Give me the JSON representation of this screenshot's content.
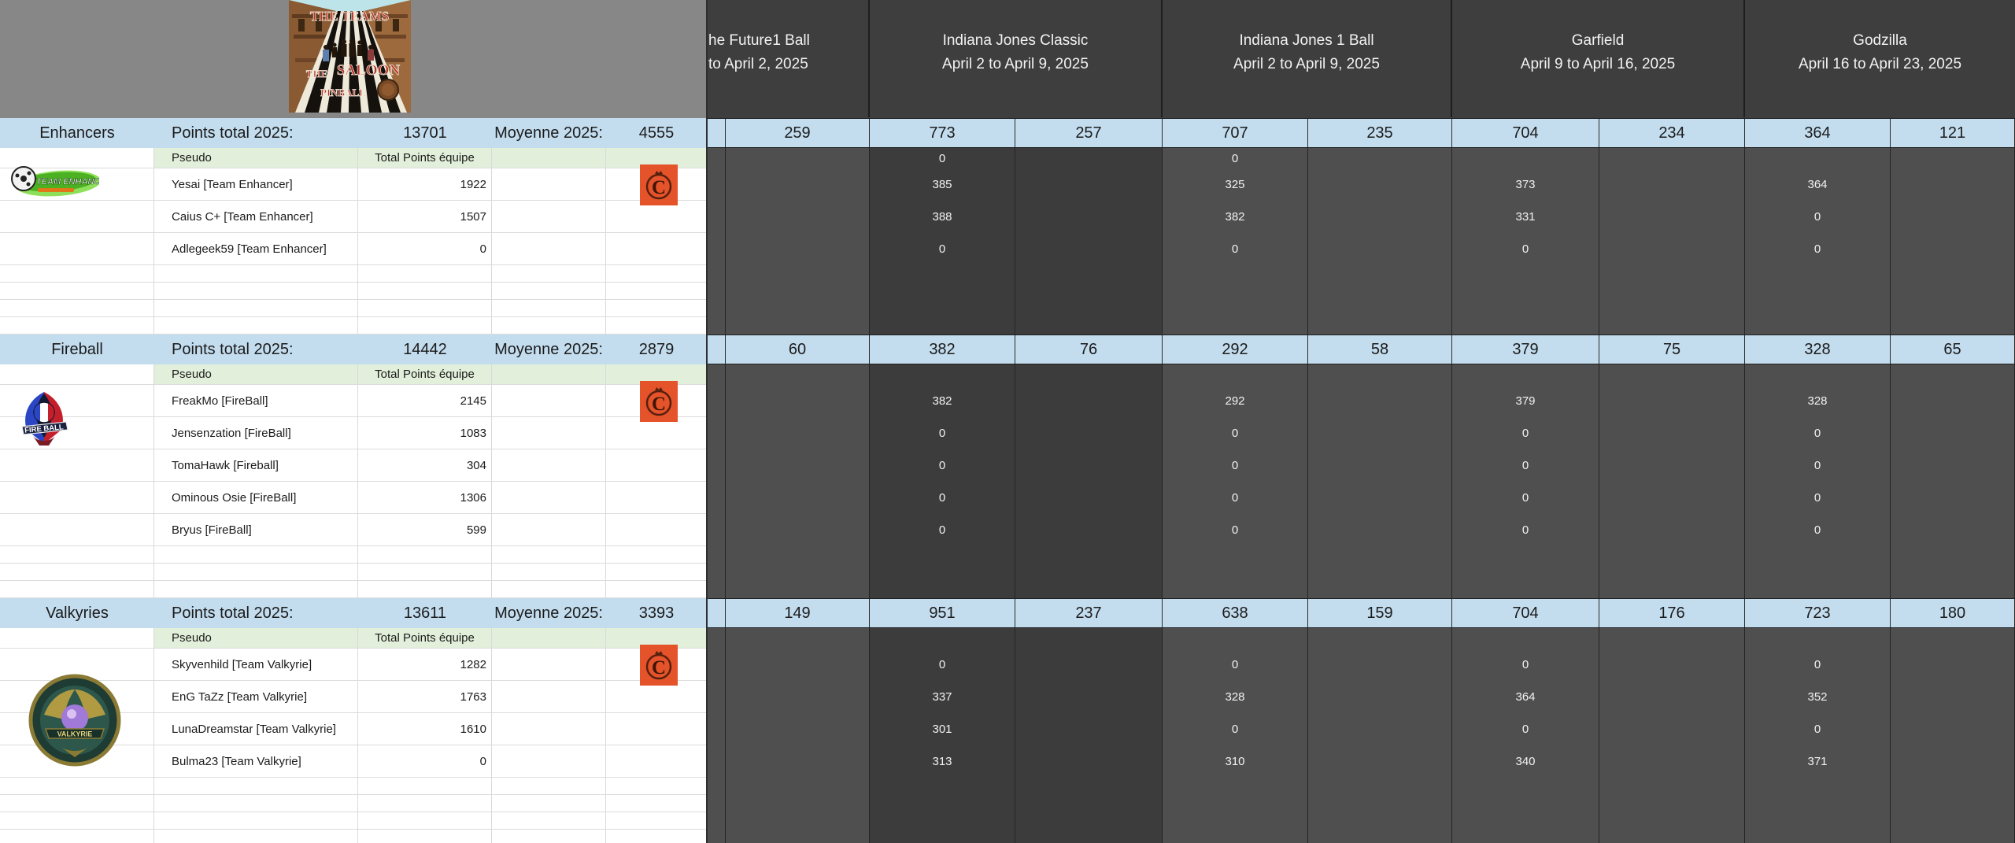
{
  "poster": {
    "icon": "saloon-poster-image",
    "title_top": "THE TEAMS",
    "word_the": "THE",
    "word_saloon": "SALOON",
    "word_pinball": "PINBALL"
  },
  "labels": {
    "points_total": "Points total 2025:",
    "moyenne": "Moyenne 2025:",
    "pseudo": "Pseudo",
    "total_points_equipe": "Total Points équipe"
  },
  "tournaments": [
    {
      "name": "he Future1 Ball",
      "dates": "to April 2, 2025",
      "clipped": true
    },
    {
      "name": "Indiana Jones Classic",
      "dates": "April 2 to April 9, 2025"
    },
    {
      "name": "Indiana Jones 1 Ball",
      "dates": "April 2 to April 9, 2025"
    },
    {
      "name": "Garfield",
      "dates": "April 9 to April 16, 2025"
    },
    {
      "name": "Godzilla",
      "dates": "April 16 to April 23, 2025"
    }
  ],
  "teams": [
    {
      "name": "Enhancers",
      "points_total": "13701",
      "moyenne": "4555",
      "logo_icon": "team-enhancer-logo",
      "header_values": [
        "259",
        "773",
        "257",
        "707",
        "235",
        "704",
        "234",
        "364",
        "121"
      ],
      "pseudo_row_values": [
        "",
        "0",
        "",
        "0",
        "",
        "",
        "",
        "",
        ""
      ],
      "players": [
        {
          "pseudo": "Yesai [Team Enhancer]",
          "total": "1922",
          "badge": "c-badge-icon",
          "values": [
            "",
            "385",
            "",
            "325",
            "",
            "373",
            "",
            "364",
            ""
          ]
        },
        {
          "pseudo": "Caius C+ [Team Enhancer]",
          "total": "1507",
          "badge": null,
          "values": [
            "",
            "388",
            "",
            "382",
            "",
            "331",
            "",
            "0",
            ""
          ]
        },
        {
          "pseudo": "Adlegeek59 [Team Enhancer]",
          "total": "0",
          "badge": null,
          "values": [
            "",
            "0",
            "",
            "0",
            "",
            "0",
            "",
            "0",
            ""
          ]
        }
      ],
      "empty_rows_after": 4
    },
    {
      "name": "Fireball",
      "points_total": "14442",
      "moyenne": "2879",
      "logo_icon": "fireball-logo",
      "logo_text": "FIRE BALL",
      "header_values": [
        "60",
        "382",
        "76",
        "292",
        "58",
        "379",
        "75",
        "328",
        "65"
      ],
      "pseudo_row_values": [
        "",
        "",
        "",
        "",
        "",
        "",
        "",
        "",
        ""
      ],
      "players": [
        {
          "pseudo": "FreakMo [FireBall]",
          "total": "2145",
          "badge": "c-badge-icon",
          "values": [
            "",
            "382",
            "",
            "292",
            "",
            "379",
            "",
            "328",
            ""
          ]
        },
        {
          "pseudo": "Jensenzation [FireBall]",
          "total": "1083",
          "badge": null,
          "values": [
            "",
            "0",
            "",
            "0",
            "",
            "0",
            "",
            "0",
            ""
          ]
        },
        {
          "pseudo": "TomaHawk [Fireball]",
          "total": "304",
          "badge": null,
          "values": [
            "",
            "0",
            "",
            "0",
            "",
            "0",
            "",
            "0",
            ""
          ]
        },
        {
          "pseudo": "Ominous Osie [FireBall]",
          "total": "1306",
          "badge": null,
          "values": [
            "",
            "0",
            "",
            "0",
            "",
            "0",
            "",
            "0",
            ""
          ]
        },
        {
          "pseudo": "Bryus [FireBall]",
          "total": "599",
          "badge": null,
          "values": [
            "",
            "0",
            "",
            "0",
            "",
            "0",
            "",
            "0",
            ""
          ]
        }
      ],
      "empty_rows_after": 3
    },
    {
      "name": "Valkyries",
      "points_total": "13611",
      "moyenne": "3393",
      "logo_icon": "valkyrie-logo",
      "logo_text": "VALKYRIE",
      "header_values": [
        "149",
        "951",
        "237",
        "638",
        "159",
        "704",
        "176",
        "723",
        "180"
      ],
      "pseudo_row_values": [
        "",
        "",
        "",
        "",
        "",
        "",
        "",
        "",
        ""
      ],
      "players": [
        {
          "pseudo": "Skyvenhild [Team Valkyrie]",
          "total": "1282",
          "badge": "c-badge-icon",
          "values": [
            "",
            "0",
            "",
            "0",
            "",
            "0",
            "",
            "0",
            ""
          ]
        },
        {
          "pseudo": "EnG TaZz [Team Valkyrie]",
          "total": "1763",
          "badge": null,
          "values": [
            "",
            "337",
            "",
            "328",
            "",
            "364",
            "",
            "352",
            ""
          ]
        },
        {
          "pseudo": "LunaDreamstar [Team Valkyrie]",
          "total": "1610",
          "badge": null,
          "values": [
            "",
            "301",
            "",
            "0",
            "",
            "0",
            "",
            "0",
            ""
          ]
        },
        {
          "pseudo": "Bulma23  [Team Valkyrie]",
          "total": "0",
          "badge": null,
          "values": [
            "",
            "313",
            "",
            "310",
            "",
            "340",
            "",
            "371",
            ""
          ]
        }
      ],
      "empty_rows_after": 4
    }
  ],
  "colors": {
    "header_gray": "#878787",
    "dark_header": "#3e3e3e",
    "body_col": "#4f4f4f",
    "body_col_dark": "#3c3c3c",
    "blue_row": "#c3ddef",
    "green_row": "#e2efda",
    "badge_orange": "#e4532a"
  }
}
